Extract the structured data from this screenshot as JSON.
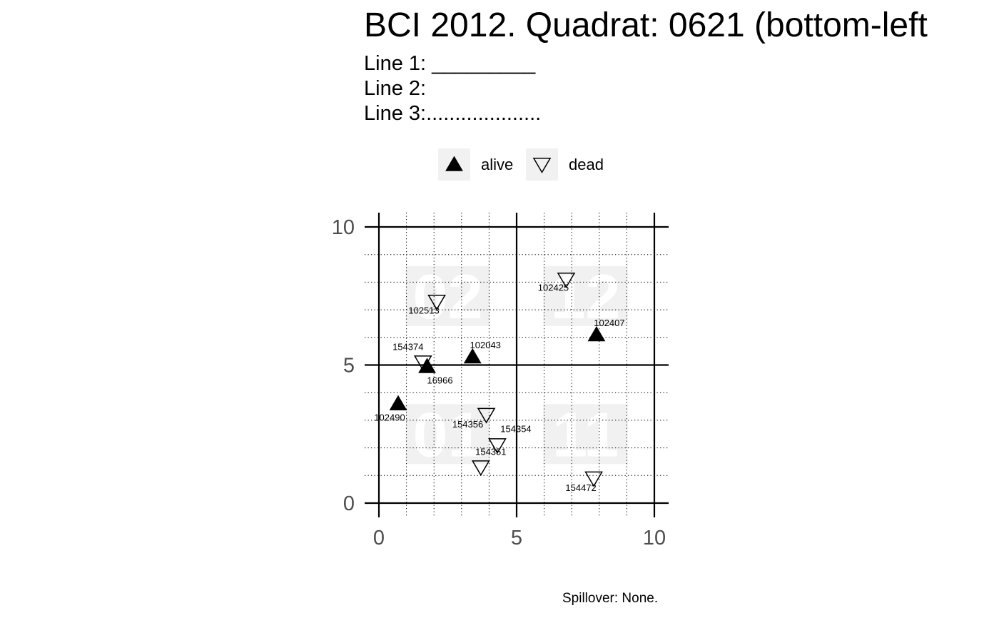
{
  "header": {
    "title": "BCI 2012. Quadrat:  0621 (bottom-left",
    "lines": [
      "Line 1: _________",
      "Line 2:",
      "Line 3:...................."
    ]
  },
  "footer": {
    "spillover": "Spillover: None."
  },
  "colors": {
    "alive_fill": "#000000",
    "dead_fill": "#ffffff",
    "quadrant_label_bg": "#f2f1f1"
  },
  "chart_data": {
    "type": "scatter",
    "xlim": [
      0,
      10
    ],
    "ylim": [
      0,
      10
    ],
    "x_ticks": [
      0,
      5,
      10
    ],
    "y_ticks": [
      0,
      5,
      10
    ],
    "grid": "major solid every 5, minor dotted every 1",
    "legend_position": "top",
    "legend": [
      {
        "key": "alive",
        "label": "alive",
        "symbol": "filled-triangle-up"
      },
      {
        "key": "dead",
        "label": "dead",
        "symbol": "open-triangle-down"
      }
    ],
    "quadrant_labels": [
      {
        "label": "01",
        "x": 2.5,
        "y": 2.5
      },
      {
        "label": "02",
        "x": 2.5,
        "y": 7.5
      },
      {
        "label": "11",
        "x": 7.5,
        "y": 2.5
      },
      {
        "label": "12",
        "x": 7.5,
        "y": 7.5
      }
    ],
    "points": [
      {
        "tag": "102513",
        "x": 2.1,
        "y": 7.3,
        "status": "dead"
      },
      {
        "tag": "102425",
        "x": 6.8,
        "y": 8.1,
        "status": "dead"
      },
      {
        "tag": "102407",
        "x": 7.9,
        "y": 6.1,
        "status": "alive"
      },
      {
        "tag": "102043",
        "x": 3.4,
        "y": 5.3,
        "status": "alive"
      },
      {
        "tag": "154374",
        "x": 1.6,
        "y": 5.1,
        "status": "dead"
      },
      {
        "tag": "16966",
        "x": 1.75,
        "y": 4.95,
        "status": "alive"
      },
      {
        "tag": "102490",
        "x": 0.7,
        "y": 3.6,
        "status": "alive"
      },
      {
        "tag": "154356",
        "x": 3.9,
        "y": 3.2,
        "status": "dead"
      },
      {
        "tag": "154354",
        "x": 4.3,
        "y": 2.1,
        "status": "dead"
      },
      {
        "tag": "154351",
        "x": 3.7,
        "y": 1.3,
        "status": "dead"
      },
      {
        "tag": "154472",
        "x": 7.8,
        "y": 0.9,
        "status": "dead"
      }
    ]
  }
}
